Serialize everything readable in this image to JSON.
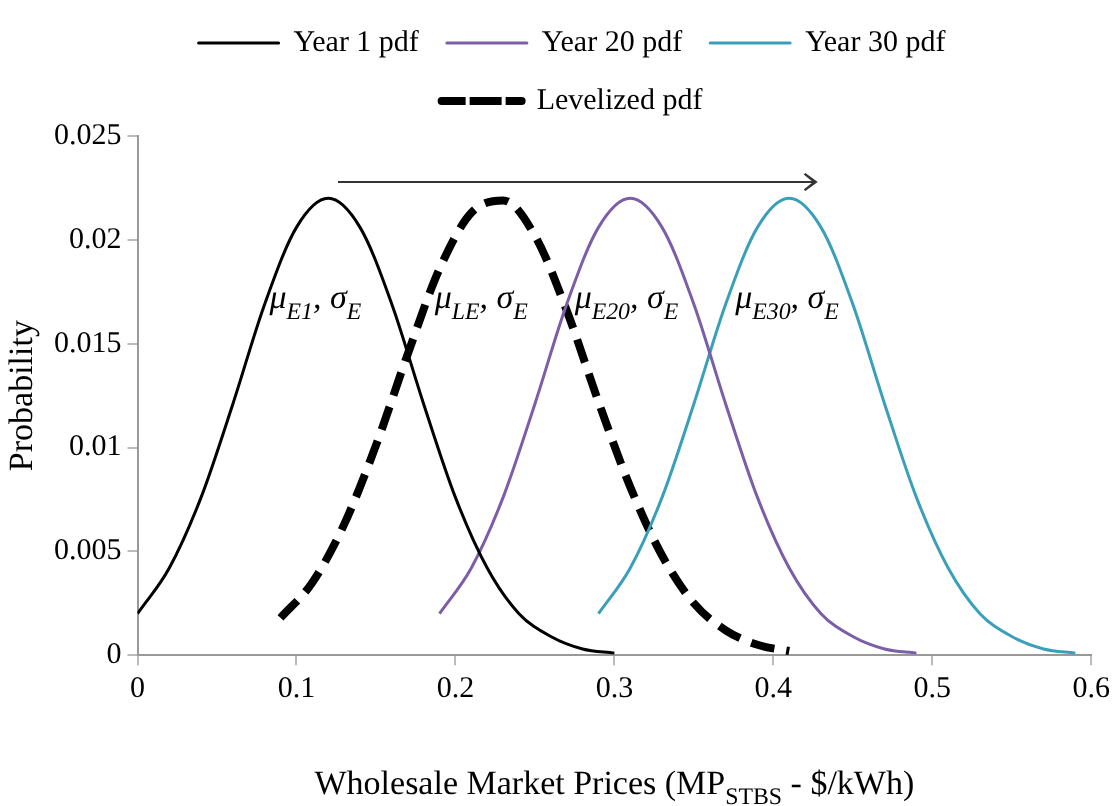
{
  "chart_data": {
    "type": "line",
    "xlabel": "Wholesale Market Prices (MP$_{STBS}$ - $/kWh)",
    "ylabel": "Probability",
    "xlim": [
      0,
      0.6
    ],
    "xticks": [
      0,
      0.1,
      0.2,
      0.3,
      0.4,
      0.5,
      0.6
    ],
    "ylim": [
      0,
      0.025
    ],
    "yticks": [
      0,
      0.005,
      0.01,
      0.015,
      0.02,
      0.025
    ],
    "grid": false,
    "legend": "top",
    "marker": "none",
    "series": [
      {
        "name": "Year 1 pdf",
        "color": "#000000",
        "line_style": "solid",
        "x": [
          0,
          0.02,
          0.04,
          0.06,
          0.08,
          0.1,
          0.12,
          0.14,
          0.16,
          0.18,
          0.2,
          0.22,
          0.24,
          0.26,
          0.28,
          0.3
        ],
        "values": [
          0.002,
          0.0042,
          0.0076,
          0.0121,
          0.0169,
          0.0206,
          0.022,
          0.0206,
          0.0169,
          0.0121,
          0.0076,
          0.0042,
          0.002,
          0.0009,
          0.0003,
          0.0001
        ]
      },
      {
        "name": "Year 20 pdf",
        "color": "#7b5ea7",
        "line_style": "solid",
        "x": [
          0.19,
          0.21,
          0.23,
          0.25,
          0.27,
          0.29,
          0.31,
          0.33,
          0.35,
          0.37,
          0.39,
          0.41,
          0.43,
          0.45,
          0.47,
          0.49
        ],
        "values": [
          0.002,
          0.0042,
          0.0076,
          0.0121,
          0.0169,
          0.0206,
          0.022,
          0.0206,
          0.0169,
          0.0121,
          0.0076,
          0.0042,
          0.002,
          0.0009,
          0.0003,
          0.0001
        ]
      },
      {
        "name": "Year 30 pdf",
        "color": "#3a9fb8",
        "line_style": "solid",
        "x": [
          0.29,
          0.31,
          0.33,
          0.35,
          0.37,
          0.39,
          0.41,
          0.43,
          0.45,
          0.47,
          0.49,
          0.51,
          0.53,
          0.55,
          0.57,
          0.59
        ],
        "values": [
          0.002,
          0.0042,
          0.0076,
          0.0121,
          0.0169,
          0.0206,
          0.022,
          0.0206,
          0.0169,
          0.0121,
          0.0076,
          0.0042,
          0.002,
          0.0009,
          0.0003,
          0.0001
        ]
      },
      {
        "name": "Levelized pdf",
        "color": "#000000",
        "line_style": "dashed",
        "x": [
          0.09,
          0.11,
          0.13,
          0.15,
          0.17,
          0.19,
          0.21,
          0.23,
          0.25,
          0.27,
          0.29,
          0.31,
          0.33,
          0.35,
          0.37,
          0.39,
          0.41
        ],
        "values": [
          0.0018,
          0.0035,
          0.0063,
          0.0101,
          0.0145,
          0.0186,
          0.0213,
          0.0219,
          0.0202,
          0.0166,
          0.0122,
          0.0081,
          0.0048,
          0.0025,
          0.0012,
          0.0005,
          0.0002
        ]
      }
    ],
    "annotations": [
      {
        "text": "μ$_{E1}$, σ$_{E}$",
        "x": 0.083,
        "y": 0.0167
      },
      {
        "text": "μ$_{LE}$, σ$_{E}$",
        "x": 0.187,
        "y": 0.0167
      },
      {
        "text": "μ$_{E20}$, σ$_{E}$",
        "x": 0.275,
        "y": 0.0167
      },
      {
        "text": "μ$_{E30}$, σ$_{E}$",
        "x": 0.376,
        "y": 0.0167
      }
    ]
  }
}
